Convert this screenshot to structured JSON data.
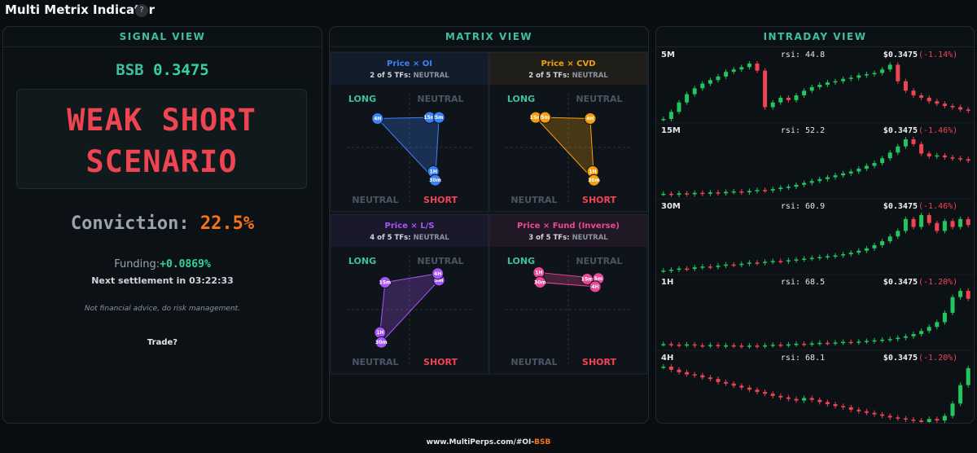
{
  "header": {
    "title": "Multi Metrix Indicator",
    "help": "?"
  },
  "signal_view": {
    "title": "SIGNAL VIEW",
    "symbol": "BSB",
    "price": "0.3475",
    "signal": [
      "WEAK SHORT",
      "SCENARIO"
    ],
    "conviction_label": "Conviction:",
    "conviction": "22.5%",
    "funding_label": "Funding:",
    "funding": "+0.0869%",
    "settlement": "Next settlement in 03:22:33",
    "disclaimer": "Not financial advice, do risk management.",
    "trade": "Trade?"
  },
  "matrix_view": {
    "title": "MATRIX VIEW",
    "xlim": [
      -1,
      1
    ],
    "ylim": [
      -1,
      1
    ],
    "quadrant_labels": {
      "top_left": "LONG",
      "top_right": "NEUTRAL",
      "bottom_left": "NEUTRAL",
      "bottom_right": "SHORT"
    },
    "panels": [
      {
        "title": "Price × OI",
        "color": "#3b82f6",
        "tf_count": "2 of 5 TFs:",
        "tf_state": "NEUTRAL",
        "points": [
          {
            "label": "4H",
            "x": -0.51,
            "y": 0.53
          },
          {
            "label": "15m",
            "x": 0.32,
            "y": 0.55
          },
          {
            "label": "5m",
            "x": 0.47,
            "y": 0.55
          },
          {
            "label": "1H",
            "x": 0.38,
            "y": -0.44
          },
          {
            "label": "30m",
            "x": 0.41,
            "y": -0.6
          }
        ]
      },
      {
        "title": "Price × CVD",
        "color": "#f59e0b",
        "tf_count": "2 of 5 TFs:",
        "tf_state": "NEUTRAL",
        "points": [
          {
            "label": "15m",
            "x": -0.52,
            "y": 0.55
          },
          {
            "label": "5m",
            "x": -0.37,
            "y": 0.55
          },
          {
            "label": "4H",
            "x": 0.35,
            "y": 0.53
          },
          {
            "label": "1H",
            "x": 0.39,
            "y": -0.44
          },
          {
            "label": "30m",
            "x": 0.41,
            "y": -0.6
          }
        ]
      },
      {
        "title": "Price × L/S",
        "color": "#a855f7",
        "tf_count": "4 of 5 TFs:",
        "tf_state": "NEUTRAL",
        "points": [
          {
            "label": "5m",
            "x": 0.47,
            "y": 0.54
          },
          {
            "label": "4H",
            "x": 0.45,
            "y": 0.66
          },
          {
            "label": "15m",
            "x": -0.39,
            "y": 0.5
          },
          {
            "label": "1H",
            "x": -0.47,
            "y": -0.42
          },
          {
            "label": "30m",
            "x": -0.45,
            "y": -0.6
          }
        ]
      },
      {
        "title": "Price × Fund (Inverse)",
        "color": "#ec4899",
        "tf_count": "3 of 5 TFs:",
        "tf_state": "NEUTRAL",
        "points": [
          {
            "label": "1H",
            "x": -0.47,
            "y": 0.68
          },
          {
            "label": "30m",
            "x": -0.45,
            "y": 0.5
          },
          {
            "label": "15m",
            "x": 0.3,
            "y": 0.56
          },
          {
            "label": "5m",
            "x": 0.48,
            "y": 0.57
          },
          {
            "label": "4H",
            "x": 0.43,
            "y": 0.42
          }
        ]
      }
    ]
  },
  "intraday_view": {
    "title": "INTRADAY VIEW",
    "panels": [
      {
        "timeframe": "5M",
        "rsi": "rsi: 44.8",
        "price": "$0.3475",
        "change": "(-1.14%)",
        "closes": [
          0.3468,
          0.3474,
          0.3482,
          0.3489,
          0.3494,
          0.3498,
          0.3501,
          0.3504,
          0.3508,
          0.351,
          0.3512,
          0.3515,
          0.3509,
          0.3478,
          0.3482,
          0.3486,
          0.3484,
          0.3488,
          0.3492,
          0.3495,
          0.3497,
          0.3499,
          0.35,
          0.3502,
          0.3503,
          0.3505,
          0.3506,
          0.3507,
          0.351,
          0.3514,
          0.35,
          0.3492,
          0.3488,
          0.3486,
          0.3483,
          0.3481,
          0.3479,
          0.3478,
          0.3476,
          0.3475
        ]
      },
      {
        "timeframe": "15M",
        "rsi": "rsi: 52.2",
        "price": "$0.3475",
        "change": "(-1.46%)",
        "closes": [
          0.3405,
          0.3403,
          0.3406,
          0.3404,
          0.3407,
          0.3405,
          0.3408,
          0.3406,
          0.3409,
          0.341,
          0.3408,
          0.3411,
          0.3413,
          0.3412,
          0.3415,
          0.3418,
          0.342,
          0.3424,
          0.3428,
          0.3432,
          0.3436,
          0.344,
          0.3444,
          0.3448,
          0.3452,
          0.3458,
          0.3464,
          0.347,
          0.348,
          0.3492,
          0.3505,
          0.352,
          0.351,
          0.349,
          0.3484,
          0.3486,
          0.3482,
          0.348,
          0.3478,
          0.3475
        ]
      },
      {
        "timeframe": "30M",
        "rsi": "rsi: 60.9",
        "price": "$0.3475",
        "change": "(-1.46%)",
        "closes": [
          0.336,
          0.3362,
          0.3365,
          0.3364,
          0.3368,
          0.337,
          0.3369,
          0.3372,
          0.3375,
          0.3374,
          0.3377,
          0.338,
          0.3379,
          0.3382,
          0.3384,
          0.3383,
          0.3386,
          0.3388,
          0.339,
          0.3392,
          0.3394,
          0.3396,
          0.3398,
          0.3401,
          0.3405,
          0.341,
          0.3416,
          0.3424,
          0.3434,
          0.3446,
          0.346,
          0.349,
          0.347,
          0.35,
          0.348,
          0.346,
          0.3485,
          0.347,
          0.349,
          0.3475
        ]
      },
      {
        "timeframe": "1H",
        "rsi": "rsi: 68.5",
        "price": "$0.3475",
        "change": "(-1.20%)",
        "closes": [
          0.333,
          0.3328,
          0.3327,
          0.3329,
          0.3326,
          0.3325,
          0.3327,
          0.3324,
          0.3326,
          0.3325,
          0.3323,
          0.3325,
          0.3324,
          0.3326,
          0.3328,
          0.3327,
          0.3329,
          0.3331,
          0.333,
          0.3332,
          0.3334,
          0.3333,
          0.3335,
          0.3337,
          0.3336,
          0.3338,
          0.334,
          0.3342,
          0.3344,
          0.3346,
          0.335,
          0.3355,
          0.3362,
          0.3372,
          0.3385,
          0.34,
          0.343,
          0.348,
          0.35,
          0.3475
        ]
      },
      {
        "timeframe": "4H",
        "rsi": "rsi: 68.1",
        "price": "$0.3475",
        "change": "(-1.20%)",
        "closes": [
          0.348,
          0.347,
          0.3462,
          0.3455,
          0.3452,
          0.3445,
          0.344,
          0.343,
          0.3425,
          0.3418,
          0.3412,
          0.3405,
          0.3398,
          0.3392,
          0.3385,
          0.338,
          0.3375,
          0.337,
          0.3378,
          0.3372,
          0.3365,
          0.3358,
          0.3352,
          0.3348,
          0.334,
          0.3335,
          0.333,
          0.3325,
          0.332,
          0.3315,
          0.3312,
          0.3308,
          0.3305,
          0.33,
          0.331,
          0.3305,
          0.332,
          0.336,
          0.342,
          0.3475
        ]
      }
    ]
  },
  "footer": {
    "url": "www.MultiPerps.com/#OI-",
    "symbol": "BSB"
  }
}
